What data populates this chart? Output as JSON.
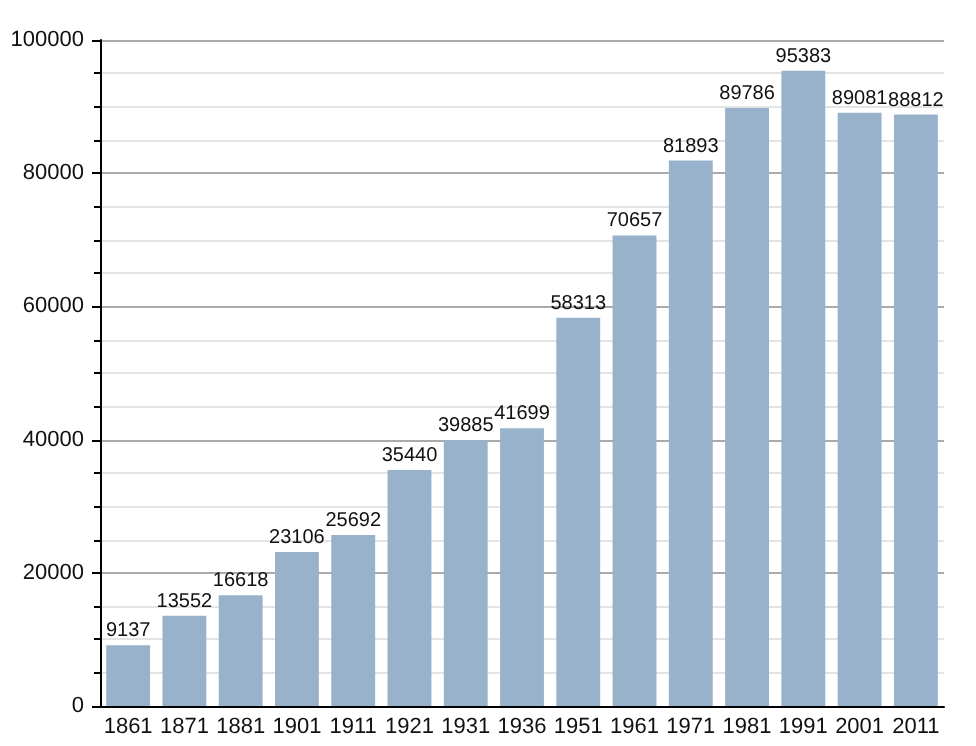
{
  "chart_data": {
    "type": "bar",
    "categories": [
      "1861",
      "1871",
      "1881",
      "1901",
      "1911",
      "1921",
      "1931",
      "1936",
      "1951",
      "1961",
      "1971",
      "1981",
      "1991",
      "2001",
      "2011"
    ],
    "values": [
      9137,
      13552,
      16618,
      23106,
      25692,
      35440,
      39885,
      41699,
      58313,
      70657,
      81893,
      89786,
      95383,
      89081,
      88812
    ],
    "color": "#98b2cc",
    "ylim": [
      0,
      100000
    ],
    "yticks": [
      0,
      20000,
      40000,
      60000,
      80000,
      100000
    ],
    "grid": true,
    "data_labels": true
  }
}
